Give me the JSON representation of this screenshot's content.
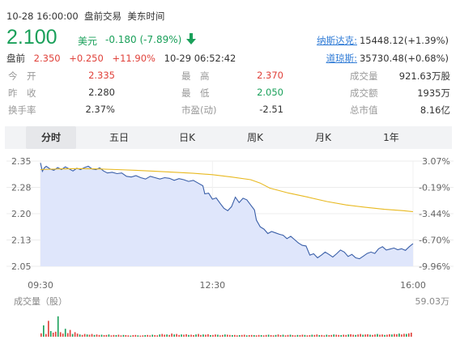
{
  "header": {
    "datetime": "10-28 16:00:00",
    "status": "盘前交易",
    "timezone": "美东时间",
    "price": "2.100",
    "currency": "美元",
    "change": "-0.180 (-7.89%)",
    "premarket": {
      "label": "盘前",
      "price": "2.350",
      "change": "+0.250",
      "pct": "+11.90%",
      "time": "10-29 06:52:42"
    },
    "indices": [
      {
        "name": "纳斯达克:",
        "value": "15448.12(+1.39%)"
      },
      {
        "name": "道琼斯:",
        "value": "35730.48(+0.68%)"
      }
    ]
  },
  "stats": {
    "rows": [
      [
        {
          "label": "今　开",
          "value": "2.335",
          "color": "#e0413a"
        },
        {
          "label": "最　高",
          "value": "2.370",
          "color": "#e0413a"
        },
        {
          "label": "成交量",
          "value": "921.63万股",
          "color": "#333333"
        }
      ],
      [
        {
          "label": "昨　收",
          "value": "2.280",
          "color": "#333333"
        },
        {
          "label": "最　低",
          "value": "2.050",
          "color": "#1aa05a"
        },
        {
          "label": "成交额",
          "value": "1935万",
          "color": "#333333"
        }
      ],
      [
        {
          "label": "换手率",
          "value": "2.37%",
          "color": "#333333"
        },
        {
          "label": "市盈(动)",
          "value": "-2.51",
          "color": "#333333"
        },
        {
          "label": "总市值",
          "value": "8.16亿",
          "color": "#333333"
        }
      ]
    ]
  },
  "tabs": [
    "分时",
    "五日",
    "日K",
    "周K",
    "月K",
    "1年"
  ],
  "active_tab": "分时",
  "colors": {
    "up": "#e0413a",
    "down": "#1aa05a",
    "price_line": "#3a5fa8",
    "avg_line": "#e8b920",
    "area": "#dfe6fb"
  },
  "chart_data": {
    "type": "line",
    "y_ticks": [
      "2.35",
      "2.28",
      "2.20",
      "2.13",
      "2.05"
    ],
    "pct_ticks": [
      "3.07%",
      "-0.19%",
      "-3.44%",
      "-6.70%",
      "-9.96%"
    ],
    "x_ticks": [
      "09:30",
      "12:30",
      "16:00"
    ],
    "ylim": [
      2.0327,
      2.3453
    ],
    "prev_close": 2.28,
    "time_range_minutes": [
      0,
      390
    ],
    "series": [
      {
        "points": [
          [
            0,
            2.34
          ],
          [
            2,
            2.315
          ],
          [
            4,
            2.325
          ],
          [
            6,
            2.33
          ],
          [
            10,
            2.322
          ],
          [
            14,
            2.318
          ],
          [
            18,
            2.326
          ],
          [
            22,
            2.32
          ],
          [
            26,
            2.328
          ],
          [
            30,
            2.322
          ],
          [
            34,
            2.316
          ],
          [
            38,
            2.324
          ],
          [
            42,
            2.32
          ],
          [
            46,
            2.326
          ],
          [
            50,
            2.33
          ],
          [
            54,
            2.322
          ],
          [
            58,
            2.32
          ],
          [
            62,
            2.325
          ],
          [
            66,
            2.316
          ],
          [
            70,
            2.31
          ],
          [
            75,
            2.312
          ],
          [
            80,
            2.308
          ],
          [
            85,
            2.31
          ],
          [
            90,
            2.3
          ],
          [
            95,
            2.298
          ],
          [
            100,
            2.302
          ],
          [
            105,
            2.296
          ],
          [
            110,
            2.292
          ],
          [
            115,
            2.3
          ],
          [
            120,
            2.296
          ],
          [
            125,
            2.292
          ],
          [
            130,
            2.296
          ],
          [
            135,
            2.294
          ],
          [
            140,
            2.288
          ],
          [
            145,
            2.293
          ],
          [
            150,
            2.29
          ],
          [
            155,
            2.285
          ],
          [
            160,
            2.288
          ],
          [
            165,
            2.28
          ],
          [
            170,
            2.272
          ],
          [
            172,
            2.248
          ],
          [
            176,
            2.25
          ],
          [
            180,
            2.232
          ],
          [
            184,
            2.236
          ],
          [
            188,
            2.22
          ],
          [
            192,
            2.205
          ],
          [
            196,
            2.198
          ],
          [
            200,
            2.21
          ],
          [
            204,
            2.238
          ],
          [
            208,
            2.222
          ],
          [
            212,
            2.235
          ],
          [
            216,
            2.23
          ],
          [
            220,
            2.215
          ],
          [
            224,
            2.2
          ],
          [
            226,
            2.17
          ],
          [
            230,
            2.15
          ],
          [
            234,
            2.143
          ],
          [
            238,
            2.13
          ],
          [
            242,
            2.136
          ],
          [
            246,
            2.132
          ],
          [
            250,
            2.128
          ],
          [
            254,
            2.125
          ],
          [
            258,
            2.115
          ],
          [
            262,
            2.122
          ],
          [
            266,
            2.112
          ],
          [
            270,
            2.102
          ],
          [
            274,
            2.095
          ],
          [
            278,
            2.093
          ],
          [
            282,
            2.066
          ],
          [
            286,
            2.07
          ],
          [
            290,
            2.058
          ],
          [
            294,
            2.066
          ],
          [
            298,
            2.075
          ],
          [
            302,
            2.068
          ],
          [
            306,
            2.06
          ],
          [
            310,
            2.07
          ],
          [
            314,
            2.081
          ],
          [
            318,
            2.075
          ],
          [
            322,
            2.062
          ],
          [
            326,
            2.068
          ],
          [
            330,
            2.058
          ],
          [
            334,
            2.055
          ],
          [
            338,
            2.063
          ],
          [
            342,
            2.071
          ],
          [
            346,
            2.075
          ],
          [
            350,
            2.071
          ],
          [
            354,
            2.085
          ],
          [
            358,
            2.091
          ],
          [
            362,
            2.081
          ],
          [
            366,
            2.084
          ],
          [
            370,
            2.087
          ],
          [
            374,
            2.082
          ],
          [
            378,
            2.085
          ],
          [
            382,
            2.08
          ],
          [
            386,
            2.091
          ],
          [
            390,
            2.1
          ]
        ]
      },
      {
        "points": [
          [
            0,
            2.32
          ],
          [
            20,
            2.322
          ],
          [
            40,
            2.323
          ],
          [
            60,
            2.322
          ],
          [
            80,
            2.32
          ],
          [
            100,
            2.318
          ],
          [
            120,
            2.315
          ],
          [
            140,
            2.312
          ],
          [
            160,
            2.309
          ],
          [
            180,
            2.305
          ],
          [
            200,
            2.298
          ],
          [
            220,
            2.29
          ],
          [
            230,
            2.28
          ],
          [
            240,
            2.265
          ],
          [
            260,
            2.25
          ],
          [
            280,
            2.238
          ],
          [
            300,
            2.225
          ],
          [
            320,
            2.215
          ],
          [
            340,
            2.208
          ],
          [
            360,
            2.202
          ],
          [
            380,
            2.198
          ],
          [
            390,
            2.195
          ]
        ]
      }
    ],
    "volume": {
      "label": "成交量（股）",
      "max_label": "59.03万",
      "bars": [
        0.15,
        0.5,
        0.12,
        0.7,
        0.25,
        0.18,
        0.22,
        0.9,
        0.2,
        0.14,
        0.35,
        0.16,
        0.3,
        0.12,
        0.2,
        0.14,
        0.1,
        0.08,
        0.12,
        0.1,
        0.09,
        0.12,
        0.08,
        0.1,
        0.08,
        0.09,
        0.07,
        0.08,
        0.1,
        0.06,
        0.08,
        0.07,
        0.09,
        0.06,
        0.08,
        0.07,
        0.06,
        0.05,
        0.07,
        0.08,
        0.06,
        0.05,
        0.06,
        0.07,
        0.08,
        0.06,
        0.09,
        0.07,
        0.06,
        0.1,
        0.12,
        0.09,
        0.1,
        0.08,
        0.14,
        0.1,
        0.12,
        0.08,
        0.1,
        0.09,
        0.11,
        0.08,
        0.09,
        0.07,
        0.1,
        0.12,
        0.08,
        0.1,
        0.09,
        0.11,
        0.07,
        0.08,
        0.1,
        0.09,
        0.06,
        0.08,
        0.1,
        0.09,
        0.08,
        0.07,
        0.08,
        0.06,
        0.07,
        0.08,
        0.09,
        0.06,
        0.07,
        0.08,
        0.07,
        0.06,
        0.08,
        0.07,
        0.06,
        0.08,
        0.09,
        0.07,
        0.06,
        0.08,
        0.1,
        0.07,
        0.09,
        0.06,
        0.08,
        0.09,
        0.07,
        0.06,
        0.08,
        0.07,
        0.09,
        0.08,
        0.06,
        0.07,
        0.09,
        0.08,
        0.1,
        0.07,
        0.08,
        0.06,
        0.09,
        0.07,
        0.08,
        0.1,
        0.09,
        0.08,
        0.07,
        0.09,
        0.08,
        0.1,
        0.11,
        0.09,
        0.08,
        0.1,
        0.12,
        0.09,
        0.1,
        0.11,
        0.09,
        0.08,
        0.1,
        0.12,
        0.09,
        0.1,
        0.08,
        0.09,
        0.11,
        0.1,
        0.12,
        0.11,
        0.14,
        0.1,
        0.13,
        0.12,
        0.15,
        0.18
      ]
    }
  }
}
